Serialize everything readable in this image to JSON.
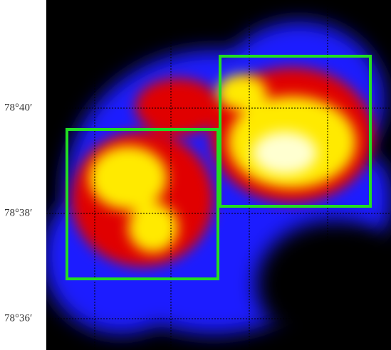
{
  "image": {
    "dec_labels": [
      "78°40′",
      "78°38′",
      "78°36′"
    ]
  }
}
